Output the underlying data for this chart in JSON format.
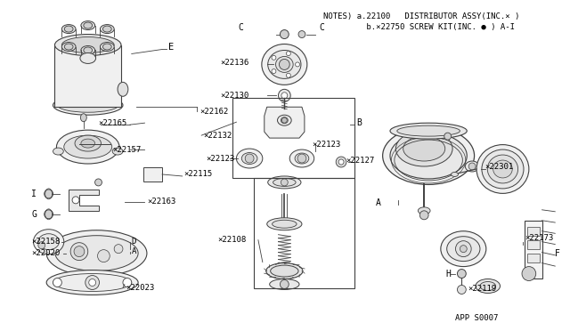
{
  "bg_color": "#ffffff",
  "border_color": "#000000",
  "line_color": "#404040",
  "text_color": "#000000",
  "notes_line1": "NOTES) a.22100   DISTRIBUTOR ASSY(INC.× )",
  "notes_line2": "         b.×22750 SCREW KIT(INC. ● ) A-I",
  "footer": "APP S0007",
  "figsize": [
    6.4,
    3.72
  ],
  "dpi": 100
}
